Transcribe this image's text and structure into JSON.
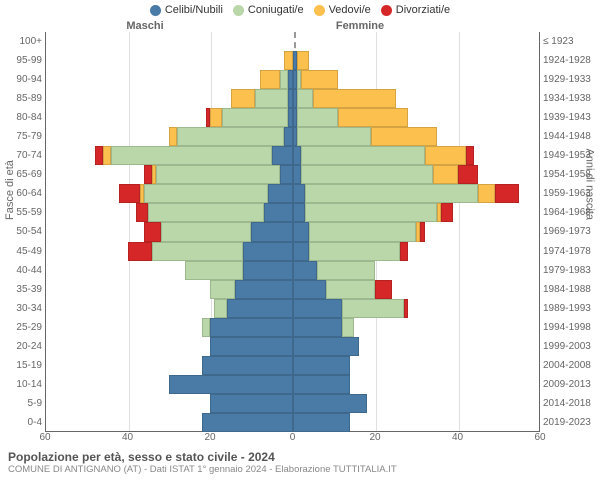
{
  "legend": [
    {
      "label": "Celibi/Nubili",
      "color": "#4a7ba6"
    },
    {
      "label": "Coniugati/e",
      "color": "#b9d7a8"
    },
    {
      "label": "Vedovi/e",
      "color": "#fbc04e"
    },
    {
      "label": "Divorziati/e",
      "color": "#d62728"
    }
  ],
  "gender": {
    "male": "Maschi",
    "female": "Femmine"
  },
  "y_left_title": "Fasce di età",
  "y_right_title": "Anni di nascita",
  "x_max": 60,
  "x_ticks": [
    60,
    40,
    20,
    0,
    20,
    40,
    60
  ],
  "colors": {
    "single": "#4a7ba6",
    "married": "#b9d7a8",
    "widowed": "#fbc04e",
    "divorced": "#d62728",
    "grid": "#e0e0e0",
    "center": "#999999"
  },
  "age_groups": [
    {
      "age": "100+",
      "birth": "≤ 1923",
      "m": {
        "s": 0,
        "c": 0,
        "w": 0,
        "d": 0
      },
      "f": {
        "s": 0,
        "c": 0,
        "w": 0,
        "d": 0
      }
    },
    {
      "age": "95-99",
      "birth": "1924-1928",
      "m": {
        "s": 0,
        "c": 0,
        "w": 2,
        "d": 0
      },
      "f": {
        "s": 1,
        "c": 0,
        "w": 3,
        "d": 0
      }
    },
    {
      "age": "90-94",
      "birth": "1929-1933",
      "m": {
        "s": 1,
        "c": 2,
        "w": 5,
        "d": 0
      },
      "f": {
        "s": 1,
        "c": 1,
        "w": 9,
        "d": 0
      }
    },
    {
      "age": "85-89",
      "birth": "1934-1938",
      "m": {
        "s": 1,
        "c": 8,
        "w": 6,
        "d": 0
      },
      "f": {
        "s": 1,
        "c": 4,
        "w": 20,
        "d": 0
      }
    },
    {
      "age": "80-84",
      "birth": "1939-1943",
      "m": {
        "s": 1,
        "c": 16,
        "w": 3,
        "d": 1
      },
      "f": {
        "s": 1,
        "c": 10,
        "w": 17,
        "d": 0
      }
    },
    {
      "age": "75-79",
      "birth": "1944-1948",
      "m": {
        "s": 2,
        "c": 26,
        "w": 2,
        "d": 0
      },
      "f": {
        "s": 1,
        "c": 18,
        "w": 16,
        "d": 0
      }
    },
    {
      "age": "70-74",
      "birth": "1949-1953",
      "m": {
        "s": 5,
        "c": 39,
        "w": 2,
        "d": 2
      },
      "f": {
        "s": 2,
        "c": 30,
        "w": 10,
        "d": 2
      }
    },
    {
      "age": "65-69",
      "birth": "1954-1958",
      "m": {
        "s": 3,
        "c": 30,
        "w": 1,
        "d": 2
      },
      "f": {
        "s": 2,
        "c": 32,
        "w": 6,
        "d": 5
      }
    },
    {
      "age": "60-64",
      "birth": "1959-1963",
      "m": {
        "s": 6,
        "c": 30,
        "w": 1,
        "d": 5
      },
      "f": {
        "s": 3,
        "c": 42,
        "w": 4,
        "d": 6
      }
    },
    {
      "age": "55-59",
      "birth": "1964-1968",
      "m": {
        "s": 7,
        "c": 28,
        "w": 0,
        "d": 3
      },
      "f": {
        "s": 3,
        "c": 32,
        "w": 1,
        "d": 3
      }
    },
    {
      "age": "50-54",
      "birth": "1969-1973",
      "m": {
        "s": 10,
        "c": 22,
        "w": 0,
        "d": 4
      },
      "f": {
        "s": 4,
        "c": 26,
        "w": 1,
        "d": 1
      }
    },
    {
      "age": "45-49",
      "birth": "1974-1978",
      "m": {
        "s": 12,
        "c": 22,
        "w": 0,
        "d": 6
      },
      "f": {
        "s": 4,
        "c": 22,
        "w": 0,
        "d": 2
      }
    },
    {
      "age": "40-44",
      "birth": "1979-1983",
      "m": {
        "s": 12,
        "c": 14,
        "w": 0,
        "d": 0
      },
      "f": {
        "s": 6,
        "c": 14,
        "w": 0,
        "d": 0
      }
    },
    {
      "age": "35-39",
      "birth": "1984-1988",
      "m": {
        "s": 14,
        "c": 6,
        "w": 0,
        "d": 0
      },
      "f": {
        "s": 8,
        "c": 12,
        "w": 0,
        "d": 4
      }
    },
    {
      "age": "30-34",
      "birth": "1989-1993",
      "m": {
        "s": 16,
        "c": 3,
        "w": 0,
        "d": 0
      },
      "f": {
        "s": 12,
        "c": 15,
        "w": 0,
        "d": 1
      }
    },
    {
      "age": "25-29",
      "birth": "1994-1998",
      "m": {
        "s": 20,
        "c": 2,
        "w": 0,
        "d": 0
      },
      "f": {
        "s": 12,
        "c": 3,
        "w": 0,
        "d": 0
      }
    },
    {
      "age": "20-24",
      "birth": "1999-2003",
      "m": {
        "s": 20,
        "c": 0,
        "w": 0,
        "d": 0
      },
      "f": {
        "s": 16,
        "c": 0,
        "w": 0,
        "d": 0
      }
    },
    {
      "age": "15-19",
      "birth": "2004-2008",
      "m": {
        "s": 22,
        "c": 0,
        "w": 0,
        "d": 0
      },
      "f": {
        "s": 14,
        "c": 0,
        "w": 0,
        "d": 0
      }
    },
    {
      "age": "10-14",
      "birth": "2009-2013",
      "m": {
        "s": 30,
        "c": 0,
        "w": 0,
        "d": 0
      },
      "f": {
        "s": 14,
        "c": 0,
        "w": 0,
        "d": 0
      }
    },
    {
      "age": "5-9",
      "birth": "2014-2018",
      "m": {
        "s": 20,
        "c": 0,
        "w": 0,
        "d": 0
      },
      "f": {
        "s": 18,
        "c": 0,
        "w": 0,
        "d": 0
      }
    },
    {
      "age": "0-4",
      "birth": "2019-2023",
      "m": {
        "s": 22,
        "c": 0,
        "w": 0,
        "d": 0
      },
      "f": {
        "s": 14,
        "c": 0,
        "w": 0,
        "d": 0
      }
    }
  ],
  "footer": {
    "title": "Popolazione per età, sesso e stato civile - 2024",
    "subtitle": "COMUNE DI ANTIGNANO (AT) - Dati ISTAT 1° gennaio 2024 - Elaborazione TUTTITALIA.IT"
  }
}
